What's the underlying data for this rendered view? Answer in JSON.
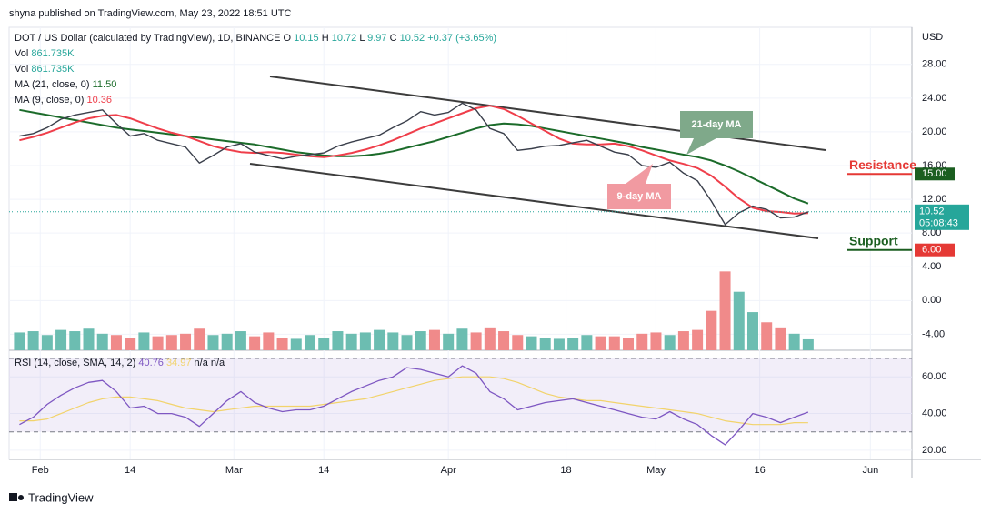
{
  "header": {
    "published": "shyna published on TradingView.com, May 23, 2022 18:51 UTC",
    "brand": "TradingView"
  },
  "chart_data": {
    "type": "line",
    "title": "DOT / US Dollar (calculated by TradingView), 1D, BINANCE",
    "ohlc": [
      "O",
      "10.15",
      "H",
      "10.72",
      "L",
      "9.97",
      "C",
      "10.52",
      "+0.37 (+3.65%)"
    ],
    "y_axis_label": "USD",
    "grid": true,
    "x": [
      1,
      3,
      5,
      7,
      9,
      11,
      13,
      15,
      17,
      19,
      21,
      23,
      25,
      27,
      29,
      31,
      33,
      35,
      37,
      39,
      41,
      43,
      45,
      47,
      49,
      51,
      53,
      55,
      57,
      59,
      61,
      63,
      65,
      67,
      69,
      71,
      73,
      75,
      77,
      79,
      81,
      83,
      85,
      87,
      89,
      91,
      93,
      95,
      97,
      99,
      101,
      103,
      105,
      107,
      109,
      111,
      113,
      115
    ],
    "xlim": [
      -0.5,
      130
    ],
    "xticks": [
      {
        "value": 4,
        "label": "Feb"
      },
      {
        "value": 17,
        "label": "14"
      },
      {
        "value": 32,
        "label": "Mar"
      },
      {
        "value": 45,
        "label": "14"
      },
      {
        "value": 63,
        "label": "Apr"
      },
      {
        "value": 80,
        "label": "18"
      },
      {
        "value": 93,
        "label": "May"
      },
      {
        "value": 108,
        "label": "16"
      },
      {
        "value": 124,
        "label": "Jun"
      }
    ],
    "ylim": [
      -5.9,
      32.4
    ],
    "yticks": [
      {
        "value": 28,
        "label": "28.00"
      },
      {
        "value": 24,
        "label": "24.00"
      },
      {
        "value": 20,
        "label": "20.00"
      },
      {
        "value": 16,
        "label": "16.00"
      },
      {
        "value": 12,
        "label": "12.00"
      },
      {
        "value": 8,
        "label": "8.00"
      },
      {
        "value": 4,
        "label": "4.00"
      },
      {
        "value": 0,
        "label": "0.00"
      },
      {
        "value": -4,
        "label": "-4.00"
      }
    ],
    "price": {
      "color": "#3a3f4b",
      "values": [
        19.5,
        19.8,
        20.5,
        21.5,
        22,
        22.3,
        22.6,
        21,
        19.5,
        19.8,
        19,
        18.6,
        18.2,
        16.3,
        17.2,
        18.2,
        18.6,
        17.6,
        17.2,
        16.8,
        17.1,
        17.3,
        17.5,
        18.3,
        18.8,
        19.2,
        19.6,
        20.5,
        21.3,
        22.4,
        22,
        22.3,
        23.4,
        22.6,
        20.4,
        19.8,
        17.8,
        18,
        18.3,
        18.4,
        18.7,
        19,
        18.3,
        17.6,
        17.3,
        16,
        15.8,
        16.4,
        15.1,
        14.2,
        11.8,
        9,
        10.4,
        11.2,
        10.8,
        9.8,
        9.9,
        10.52
      ]
    },
    "series": [
      {
        "name": "MA (21, close, 0)",
        "value_label": "11.50",
        "color": "#1b6b2a",
        "values": [
          22.6,
          22.3,
          22.0,
          21.7,
          21.4,
          21.1,
          20.8,
          20.5,
          20.3,
          20.1,
          19.9,
          19.7,
          19.5,
          19.3,
          19.1,
          18.9,
          18.7,
          18.5,
          18.2,
          17.9,
          17.6,
          17.4,
          17.2,
          17.1,
          17.1,
          17.2,
          17.4,
          17.7,
          18.1,
          18.5,
          18.9,
          19.4,
          19.9,
          20.4,
          20.8,
          21.0,
          20.9,
          20.7,
          20.4,
          20.1,
          19.8,
          19.5,
          19.2,
          18.9,
          18.6,
          18.2,
          17.9,
          17.6,
          17.3,
          17.0,
          16.6,
          16.0,
          15.3,
          14.5,
          13.7,
          12.9,
          12.1,
          11.5
        ]
      },
      {
        "name": "MA (9, close, 0)",
        "value_label": "10.36",
        "color": "#ef3e4a",
        "values": [
          19.0,
          19.4,
          19.9,
          20.5,
          21.1,
          21.6,
          21.9,
          22.0,
          21.6,
          21.0,
          20.4,
          19.9,
          19.5,
          18.9,
          18.3,
          17.9,
          17.6,
          17.5,
          17.6,
          17.5,
          17.3,
          17.1,
          17.0,
          17.2,
          17.5,
          17.9,
          18.4,
          19.0,
          19.7,
          20.4,
          21.0,
          21.6,
          22.2,
          22.8,
          23.1,
          22.7,
          21.9,
          21.0,
          20.1,
          19.2,
          18.6,
          18.5,
          18.5,
          18.6,
          18.3,
          17.8,
          17.2,
          16.6,
          16.2,
          15.7,
          14.8,
          13.5,
          12.1,
          11.0,
          10.6,
          10.5,
          10.3,
          10.36
        ]
      }
    ],
    "volume": {
      "name": "Vol",
      "value_label": "861.735K",
      "up_color": "#6cbdb1",
      "down_color": "#f08a8a",
      "y2lim": [
        0,
        25.4
      ],
      "values": [
        1.4,
        1.5,
        1.2,
        1.6,
        1.5,
        1.7,
        1.3,
        1.2,
        1.0,
        1.4,
        1.1,
        1.2,
        1.3,
        1.7,
        1.2,
        1.3,
        1.5,
        1.1,
        1.4,
        1.0,
        0.9,
        1.2,
        1.0,
        1.5,
        1.3,
        1.4,
        1.6,
        1.4,
        1.2,
        1.5,
        1.6,
        1.3,
        1.7,
        1.4,
        1.8,
        1.5,
        1.2,
        1.1,
        1.0,
        0.9,
        1.0,
        1.2,
        1.1,
        1.1,
        1.0,
        1.3,
        1.4,
        1.2,
        1.5,
        1.6,
        3.1,
        6.2,
        4.6,
        3.0,
        2.2,
        1.8,
        1.3,
        0.861735
      ]
    },
    "rsi": {
      "name": "RSI (14, close, SMA, 14, 2)",
      "value_label": "40.76",
      "color": "#7e57c2",
      "extra": "n/a n/a",
      "values": [
        34,
        38,
        45,
        50,
        54,
        57,
        58,
        52,
        43,
        44,
        40,
        40,
        38,
        33,
        40,
        47,
        52,
        46,
        43,
        41,
        42,
        42,
        44,
        48,
        52,
        55,
        58,
        60,
        65,
        64,
        62,
        60,
        66,
        62,
        52,
        48,
        42,
        44,
        46,
        47,
        48,
        46,
        44,
        42,
        40,
        38,
        37,
        41,
        37,
        34,
        28,
        23,
        31,
        40,
        38,
        35,
        38,
        40.76
      ],
      "sma": {
        "value_label": "34.97",
        "color": "#f2d36b",
        "values": [
          36,
          36,
          37,
          40,
          43,
          46,
          48,
          49,
          49,
          48,
          47,
          45,
          43,
          42,
          41,
          42,
          43,
          44,
          44,
          44,
          44,
          44,
          45,
          46,
          47,
          48,
          50,
          52,
          54,
          56,
          58,
          59,
          60,
          60,
          60,
          59,
          57,
          54,
          51,
          49,
          48,
          47,
          47,
          46,
          45,
          44,
          43,
          42,
          41,
          40,
          38,
          36,
          35,
          34,
          34,
          34,
          35,
          34.97
        ]
      },
      "ylim": [
        15,
        72
      ],
      "yticks": [
        {
          "value": 60,
          "label": "60.00"
        },
        {
          "value": 40,
          "label": "40.00"
        },
        {
          "value": 20,
          "label": "20.00"
        }
      ],
      "bands": [
        30,
        70
      ]
    },
    "annotations": [
      {
        "text": "21-day MA"
      },
      {
        "text": "9-day MA"
      },
      {
        "text": "Resistance",
        "value": 15,
        "value_label": "15.00",
        "color": "#e53935",
        "tag_color": "#1b5e20"
      },
      {
        "text": "Support",
        "value": 6,
        "value_label": "6.00",
        "color": "#1b5e20",
        "tag_color": "#e53935"
      }
    ],
    "last_price": {
      "value": 10.52,
      "label": "10.52",
      "countdown": "05:08:43",
      "color": "#26a69a"
    }
  }
}
